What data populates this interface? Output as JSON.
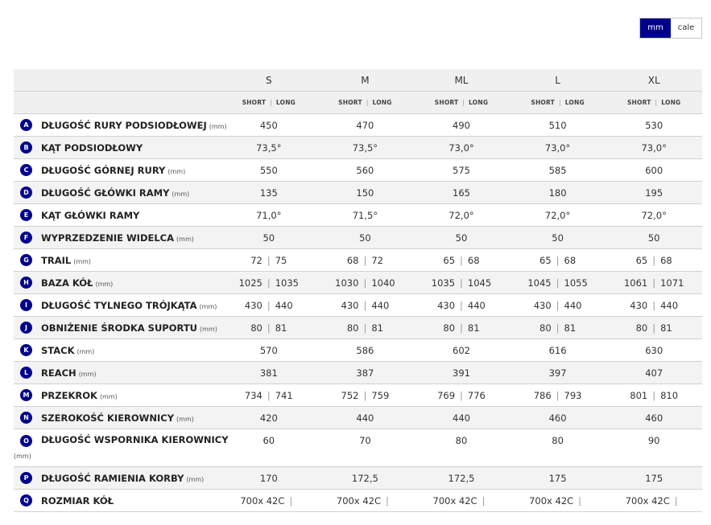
{
  "units": {
    "mm": "mm",
    "inch": "cale"
  },
  "short_label": "SHORT",
  "long_label": "LONG",
  "sizes": [
    "S",
    "M",
    "ML",
    "L",
    "XL"
  ],
  "rows": [
    {
      "letter": "A",
      "label": "DŁUGOŚĆ RURY PODSIODŁOWEJ",
      "unit": "(mm)",
      "values": [
        [
          "450"
        ],
        [
          "470"
        ],
        [
          "490"
        ],
        [
          "510"
        ],
        [
          "530"
        ]
      ]
    },
    {
      "letter": "B",
      "label": "KĄT PODSIODŁOWY",
      "unit": "",
      "values": [
        [
          "73,5°"
        ],
        [
          "73,5°"
        ],
        [
          "73,0°"
        ],
        [
          "73,0°"
        ],
        [
          "73,0°"
        ]
      ]
    },
    {
      "letter": "C",
      "label": "DŁUGOŚĆ GÓRNEJ RURY",
      "unit": "(mm)",
      "values": [
        [
          "550"
        ],
        [
          "560"
        ],
        [
          "575"
        ],
        [
          "585"
        ],
        [
          "600"
        ]
      ]
    },
    {
      "letter": "D",
      "label": "DŁUGOŚĆ GŁÓWKI RAMY",
      "unit": "(mm)",
      "values": [
        [
          "135"
        ],
        [
          "150"
        ],
        [
          "165"
        ],
        [
          "180"
        ],
        [
          "195"
        ]
      ]
    },
    {
      "letter": "E",
      "label": "KĄT GŁÓWKI RAMY",
      "unit": "",
      "values": [
        [
          "71,0°"
        ],
        [
          "71,5°"
        ],
        [
          "72,0°"
        ],
        [
          "72,0°"
        ],
        [
          "72,0°"
        ]
      ]
    },
    {
      "letter": "F",
      "label": "WYPRZEDZENIE WIDELCA",
      "unit": "(mm)",
      "values": [
        [
          "50"
        ],
        [
          "50"
        ],
        [
          "50"
        ],
        [
          "50"
        ],
        [
          "50"
        ]
      ]
    },
    {
      "letter": "G",
      "label": "TRAIL",
      "unit": "(mm)",
      "values": [
        [
          "72",
          "75"
        ],
        [
          "68",
          "72"
        ],
        [
          "65",
          "68"
        ],
        [
          "65",
          "68"
        ],
        [
          "65",
          "68"
        ]
      ]
    },
    {
      "letter": "H",
      "label": "BAZA KÓŁ",
      "unit": "(mm)",
      "values": [
        [
          "1025",
          "1035"
        ],
        [
          "1030",
          "1040"
        ],
        [
          "1035",
          "1045"
        ],
        [
          "1045",
          "1055"
        ],
        [
          "1061",
          "1071"
        ]
      ]
    },
    {
      "letter": "I",
      "label": "DŁUGOŚĆ TYLNEGO TRÓJKĄTA",
      "unit": "(mm)",
      "values": [
        [
          "430",
          "440"
        ],
        [
          "430",
          "440"
        ],
        [
          "430",
          "440"
        ],
        [
          "430",
          "440"
        ],
        [
          "430",
          "440"
        ]
      ]
    },
    {
      "letter": "J",
      "label": "OBNIŻENIE ŚRODKA SUPORTU",
      "unit": "(mm)",
      "values": [
        [
          "80",
          "81"
        ],
        [
          "80",
          "81"
        ],
        [
          "80",
          "81"
        ],
        [
          "80",
          "81"
        ],
        [
          "80",
          "81"
        ]
      ]
    },
    {
      "letter": "K",
      "label": "STACK",
      "unit": "(mm)",
      "values": [
        [
          "570"
        ],
        [
          "586"
        ],
        [
          "602"
        ],
        [
          "616"
        ],
        [
          "630"
        ]
      ]
    },
    {
      "letter": "L",
      "label": "REACH",
      "unit": "(mm)",
      "values": [
        [
          "381"
        ],
        [
          "387"
        ],
        [
          "391"
        ],
        [
          "397"
        ],
        [
          "407"
        ]
      ]
    },
    {
      "letter": "M",
      "label": "PRZEKROK",
      "unit": "(mm)",
      "values": [
        [
          "734",
          "741"
        ],
        [
          "752",
          "759"
        ],
        [
          "769",
          "776"
        ],
        [
          "786",
          "793"
        ],
        [
          "801",
          "810"
        ]
      ]
    },
    {
      "letter": "N",
      "label": "SZEROKOŚĆ KIEROWNICY",
      "unit": "(mm)",
      "values": [
        [
          "420"
        ],
        [
          "440"
        ],
        [
          "440"
        ],
        [
          "460"
        ],
        [
          "460"
        ]
      ]
    },
    {
      "letter": "O",
      "label": "DŁUGOŚĆ WSPORNIKA KIEROWNICY",
      "unit": "(mm)",
      "unit_below": true,
      "values": [
        [
          "60"
        ],
        [
          "70"
        ],
        [
          "80"
        ],
        [
          "80"
        ],
        [
          "90"
        ]
      ]
    },
    {
      "letter": "P",
      "label": "DŁUGOŚĆ RAMIENIA KORBY",
      "unit": "(mm)",
      "values": [
        [
          "170"
        ],
        [
          "172,5"
        ],
        [
          "172,5"
        ],
        [
          "175"
        ],
        [
          "175"
        ]
      ]
    },
    {
      "letter": "Q",
      "label": "ROZMIAR KÓŁ",
      "unit": "",
      "values": [
        [
          "700x 42C",
          ""
        ],
        [
          "700x 42C",
          ""
        ],
        [
          "700x 42C",
          ""
        ],
        [
          "700x 42C",
          ""
        ],
        [
          "700x 42C",
          ""
        ]
      ]
    }
  ]
}
